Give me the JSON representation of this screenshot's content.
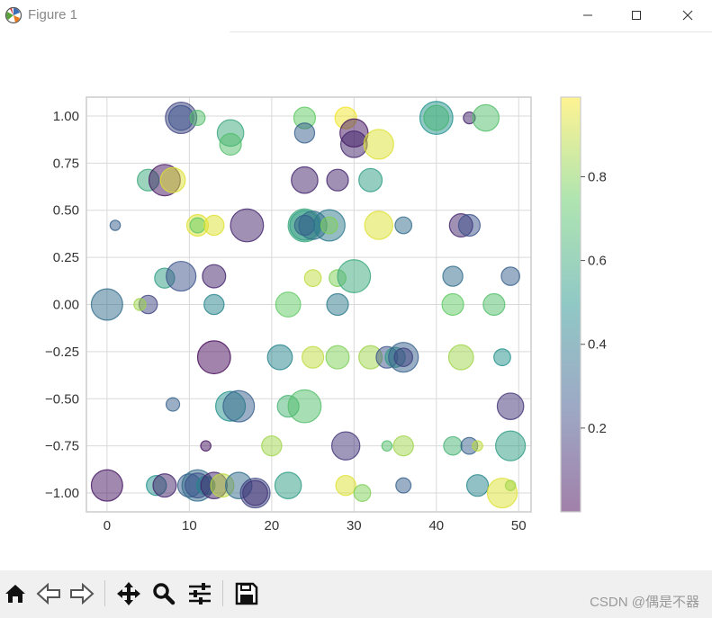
{
  "window": {
    "title": "Figure 1",
    "icons": [
      "app-icon",
      "minimize-icon",
      "maximize-icon",
      "close-icon"
    ]
  },
  "chart_data": {
    "type": "scatter",
    "title": "",
    "xlabel": "",
    "ylabel": "",
    "xlim": [
      -2.5,
      51.5
    ],
    "ylim": [
      -1.1,
      1.1
    ],
    "x_ticks": [
      "0",
      "10",
      "20",
      "30",
      "40",
      "50"
    ],
    "y_ticks": [
      "1.00",
      "0.75",
      "0.50",
      "0.25",
      "0.00",
      "−0.25",
      "−0.50",
      "−0.75",
      "−1.00"
    ],
    "grid": true,
    "colormap": "viridis",
    "alpha": 0.5,
    "colorbar": {
      "ticks": [
        "0.2",
        "0.4",
        "0.6",
        "0.8"
      ],
      "range": [
        0.0,
        0.99
      ]
    },
    "points": [
      {
        "x": 0,
        "y": 0.0,
        "size": 0.8,
        "color": 0.35
      },
      {
        "x": 0,
        "y": -0.96,
        "size": 0.8,
        "color": 0.05
      },
      {
        "x": 1,
        "y": 0.42,
        "size": 0.15,
        "color": 0.3
      },
      {
        "x": 5,
        "y": 0.66,
        "size": 0.5,
        "color": 0.6
      },
      {
        "x": 5,
        "y": 0.0,
        "size": 0.4,
        "color": 0.2
      },
      {
        "x": 4,
        "y": 0.0,
        "size": 0.2,
        "color": 0.85
      },
      {
        "x": 6,
        "y": -0.96,
        "size": 0.45,
        "color": 0.5
      },
      {
        "x": 7,
        "y": 0.66,
        "size": 0.8,
        "color": 0.05
      },
      {
        "x": 8,
        "y": 0.66,
        "size": 0.6,
        "color": 0.95
      },
      {
        "x": 7,
        "y": 0.14,
        "size": 0.45,
        "color": 0.55
      },
      {
        "x": 9,
        "y": 0.15,
        "size": 0.75,
        "color": 0.25
      },
      {
        "x": 7,
        "y": -0.96,
        "size": 0.55,
        "color": 0.1
      },
      {
        "x": 8,
        "y": -0.53,
        "size": 0.25,
        "color": 0.3
      },
      {
        "x": 9,
        "y": 0.99,
        "size": 0.8,
        "color": 0.2
      },
      {
        "x": 9,
        "y": 0.99,
        "size": 0.6,
        "color": 0.25
      },
      {
        "x": 11,
        "y": 0.99,
        "size": 0.3,
        "color": 0.7
      },
      {
        "x": 11,
        "y": 0.42,
        "size": 0.5,
        "color": 0.95
      },
      {
        "x": 11,
        "y": 0.42,
        "size": 0.3,
        "color": 0.75
      },
      {
        "x": 13,
        "y": 0.42,
        "size": 0.45,
        "color": 0.95
      },
      {
        "x": 13,
        "y": 0.15,
        "size": 0.55,
        "color": 0.1
      },
      {
        "x": 13,
        "y": 0.0,
        "size": 0.45,
        "color": 0.45
      },
      {
        "x": 13,
        "y": -0.28,
        "size": 0.85,
        "color": 0.02
      },
      {
        "x": 10,
        "y": -0.96,
        "size": 0.55,
        "color": 0.3
      },
      {
        "x": 11,
        "y": -0.96,
        "size": 0.8,
        "color": 0.35
      },
      {
        "x": 11,
        "y": -0.96,
        "size": 0.6,
        "color": 0.25
      },
      {
        "x": 12,
        "y": -0.96,
        "size": 0.4,
        "color": 0.45
      },
      {
        "x": 12,
        "y": -0.75,
        "size": 0.15,
        "color": 0.05
      },
      {
        "x": 13,
        "y": -0.96,
        "size": 0.65,
        "color": 0.1
      },
      {
        "x": 14,
        "y": -0.96,
        "size": 0.55,
        "color": 0.9
      },
      {
        "x": 15,
        "y": 0.91,
        "size": 0.65,
        "color": 0.6
      },
      {
        "x": 15,
        "y": 0.85,
        "size": 0.5,
        "color": 0.7
      },
      {
        "x": 15,
        "y": -0.54,
        "size": 0.75,
        "color": 0.5
      },
      {
        "x": 16,
        "y": -0.54,
        "size": 0.8,
        "color": 0.3
      },
      {
        "x": 16,
        "y": -0.96,
        "size": 0.65,
        "color": 0.35
      },
      {
        "x": 17,
        "y": 0.42,
        "size": 0.85,
        "color": 0.1
      },
      {
        "x": 18,
        "y": -1.0,
        "size": 0.75,
        "color": 0.2
      },
      {
        "x": 18,
        "y": -1.0,
        "size": 0.6,
        "color": 0.15
      },
      {
        "x": 20,
        "y": -0.75,
        "size": 0.45,
        "color": 0.85
      },
      {
        "x": 22,
        "y": 0.0,
        "size": 0.6,
        "color": 0.75
      },
      {
        "x": 21,
        "y": -0.28,
        "size": 0.6,
        "color": 0.45
      },
      {
        "x": 22,
        "y": -0.54,
        "size": 0.5,
        "color": 0.65
      },
      {
        "x": 22,
        "y": -0.96,
        "size": 0.65,
        "color": 0.55
      },
      {
        "x": 24,
        "y": 0.99,
        "size": 0.5,
        "color": 0.75
      },
      {
        "x": 24,
        "y": 0.91,
        "size": 0.45,
        "color": 0.3
      },
      {
        "x": 24,
        "y": 0.66,
        "size": 0.65,
        "color": 0.1
      },
      {
        "x": 24,
        "y": 0.42,
        "size": 0.85,
        "color": 0.6
      },
      {
        "x": 24,
        "y": 0.42,
        "size": 0.75,
        "color": 0.55
      },
      {
        "x": 25,
        "y": 0.42,
        "size": 0.7,
        "color": 0.35
      },
      {
        "x": 24,
        "y": 0.42,
        "size": 0.45,
        "color": 0.3
      },
      {
        "x": 25,
        "y": 0.14,
        "size": 0.35,
        "color": 0.9
      },
      {
        "x": 25,
        "y": -0.28,
        "size": 0.5,
        "color": 0.9
      },
      {
        "x": 24,
        "y": -0.54,
        "size": 0.85,
        "color": 0.7
      },
      {
        "x": 27,
        "y": 0.42,
        "size": 0.8,
        "color": 0.4
      },
      {
        "x": 27,
        "y": 0.42,
        "size": 0.35,
        "color": 0.8
      },
      {
        "x": 28,
        "y": 0.66,
        "size": 0.5,
        "color": 0.1
      },
      {
        "x": 28,
        "y": 0.14,
        "size": 0.35,
        "color": 0.8
      },
      {
        "x": 28,
        "y": 0.0,
        "size": 0.5,
        "color": 0.4
      },
      {
        "x": 28,
        "y": -0.28,
        "size": 0.55,
        "color": 0.8
      },
      {
        "x": 29,
        "y": 0.99,
        "size": 0.5,
        "color": 0.98
      },
      {
        "x": 30,
        "y": 0.91,
        "size": 0.7,
        "color": 0.05
      },
      {
        "x": 30,
        "y": 0.85,
        "size": 0.65,
        "color": 0.1
      },
      {
        "x": 30,
        "y": 0.15,
        "size": 0.85,
        "color": 0.6
      },
      {
        "x": 29,
        "y": -0.75,
        "size": 0.7,
        "color": 0.15
      },
      {
        "x": 29,
        "y": -0.96,
        "size": 0.45,
        "color": 0.95
      },
      {
        "x": 31,
        "y": -1.0,
        "size": 0.35,
        "color": 0.8
      },
      {
        "x": 32,
        "y": 0.66,
        "size": 0.55,
        "color": 0.55
      },
      {
        "x": 32,
        "y": -0.28,
        "size": 0.55,
        "color": 0.85
      },
      {
        "x": 33,
        "y": 0.85,
        "size": 0.75,
        "color": 0.95
      },
      {
        "x": 33,
        "y": 0.42,
        "size": 0.7,
        "color": 0.95
      },
      {
        "x": 34,
        "y": -0.28,
        "size": 0.5,
        "color": 0.25
      },
      {
        "x": 35,
        "y": -0.28,
        "size": 0.45,
        "color": 0.55
      },
      {
        "x": 36,
        "y": 0.42,
        "size": 0.35,
        "color": 0.35
      },
      {
        "x": 36,
        "y": -0.28,
        "size": 0.75,
        "color": 0.3
      },
      {
        "x": 36,
        "y": -0.28,
        "size": 0.4,
        "color": 0.2
      },
      {
        "x": 36,
        "y": -0.75,
        "size": 0.45,
        "color": 0.85
      },
      {
        "x": 36,
        "y": -0.96,
        "size": 0.3,
        "color": 0.3
      },
      {
        "x": 34,
        "y": -0.75,
        "size": 0.15,
        "color": 0.7
      },
      {
        "x": 40,
        "y": 0.99,
        "size": 0.85,
        "color": 0.5
      },
      {
        "x": 40,
        "y": 0.99,
        "size": 0.6,
        "color": 0.65
      },
      {
        "x": 42,
        "y": 0.15,
        "size": 0.45,
        "color": 0.35
      },
      {
        "x": 42,
        "y": 0.0,
        "size": 0.5,
        "color": 0.75
      },
      {
        "x": 42,
        "y": -0.75,
        "size": 0.4,
        "color": 0.65
      },
      {
        "x": 43,
        "y": 0.42,
        "size": 0.55,
        "color": 0.1
      },
      {
        "x": 44,
        "y": 0.42,
        "size": 0.5,
        "color": 0.25
      },
      {
        "x": 43,
        "y": -0.28,
        "size": 0.6,
        "color": 0.85
      },
      {
        "x": 44,
        "y": 0.99,
        "size": 0.2,
        "color": 0.1
      },
      {
        "x": 44,
        "y": -0.75,
        "size": 0.35,
        "color": 0.3
      },
      {
        "x": 45,
        "y": -0.75,
        "size": 0.15,
        "color": 0.9
      },
      {
        "x": 45,
        "y": -0.96,
        "size": 0.5,
        "color": 0.45
      },
      {
        "x": 46,
        "y": 0.99,
        "size": 0.65,
        "color": 0.7
      },
      {
        "x": 47,
        "y": 0.0,
        "size": 0.5,
        "color": 0.7
      },
      {
        "x": 48,
        "y": -0.28,
        "size": 0.35,
        "color": 0.5
      },
      {
        "x": 48,
        "y": -1.0,
        "size": 0.75,
        "color": 0.95
      },
      {
        "x": 49,
        "y": -0.96,
        "size": 0.15,
        "color": 0.85
      },
      {
        "x": 49,
        "y": 0.15,
        "size": 0.4,
        "color": 0.3
      },
      {
        "x": 49,
        "y": -0.54,
        "size": 0.65,
        "color": 0.15
      },
      {
        "x": 49,
        "y": -0.75,
        "size": 0.75,
        "color": 0.55
      }
    ]
  },
  "toolbar": {
    "buttons": [
      "home-icon",
      "back-icon",
      "forward-icon",
      "pan-icon",
      "zoom-icon",
      "configure-subplots-icon",
      "save-icon"
    ]
  },
  "watermark": {
    "text": "CSDN @偶是不器"
  }
}
